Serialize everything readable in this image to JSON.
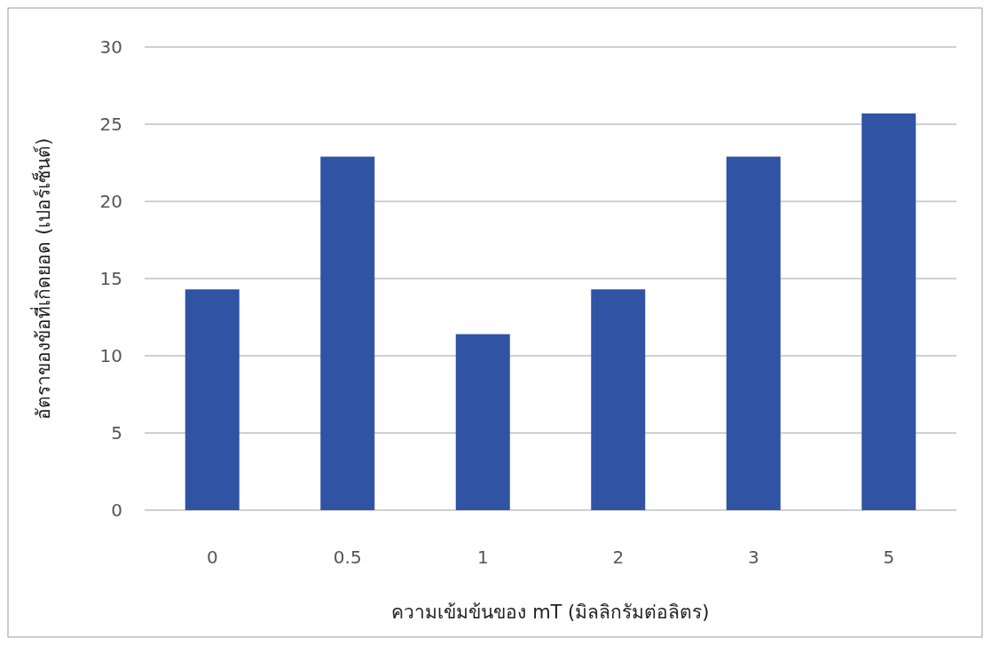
{
  "chart_data": {
    "type": "bar",
    "xlabel": "ความเข้มข้นของ mT (มิลลิกรัมต่อลิตร)",
    "ylabel": "อัตราของข้อที่เกิดยอด (เปอร์เซ็นต์)",
    "categories": [
      "0",
      "0.5",
      "1",
      "2",
      "3",
      "5"
    ],
    "values": [
      14.3,
      22.9,
      11.4,
      14.3,
      22.9,
      25.7
    ],
    "color": "#3053a3",
    "ylim": [
      0,
      30
    ],
    "yticks": [
      0,
      5,
      10,
      15,
      20,
      25,
      30
    ],
    "grid": "y"
  }
}
